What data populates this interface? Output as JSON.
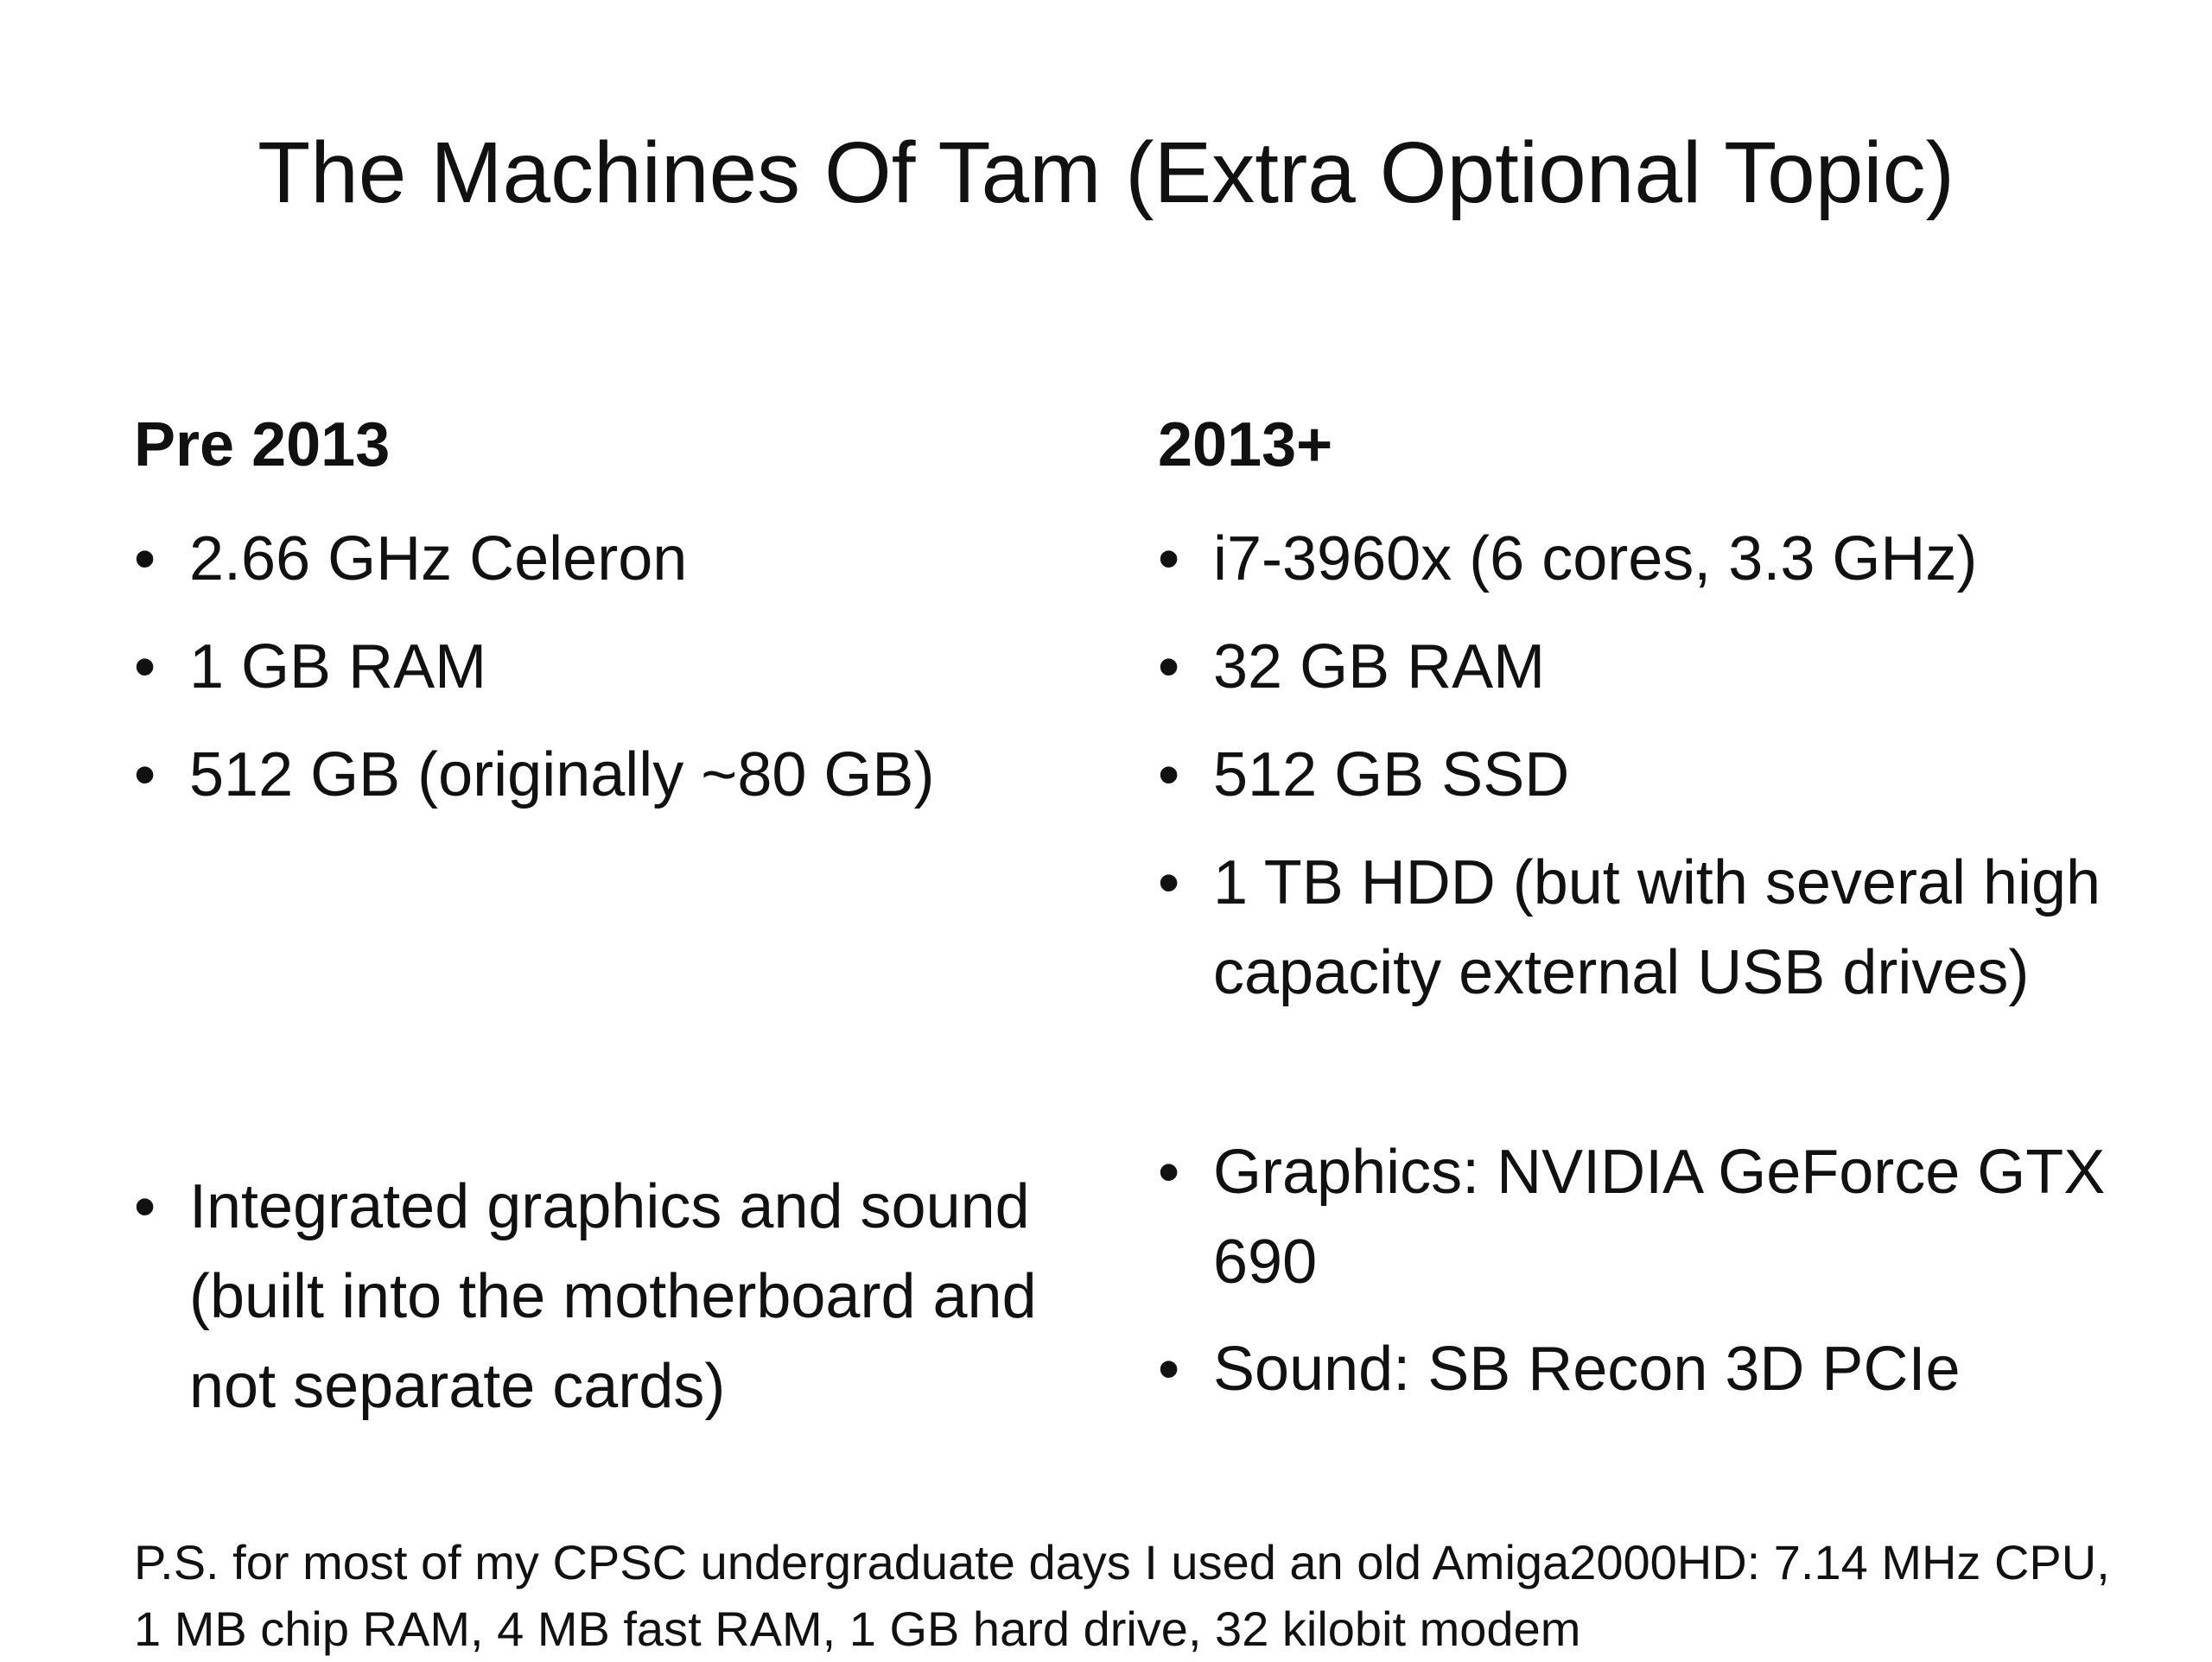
{
  "slide": {
    "title": "The Machines Of Tam (Extra Optional Topic)",
    "left_column": {
      "heading": "Pre 2013",
      "bullets": [
        "2.66 GHz Celeron",
        "1 GB RAM",
        "512 GB (originally ~80 GB)",
        "Integrated graphics  and sound (built into the motherboard and not separate cards)"
      ]
    },
    "right_column": {
      "heading": "2013+",
      "bullets": [
        "i7-3960x (6 cores, 3.3 GHz)",
        "32 GB RAM",
        "512 GB SSD",
        "1 TB HDD (but with several high capacity external USB drives)",
        "Graphics: NVIDIA GeForce GTX 690",
        "Sound: SB Recon 3D PCIe"
      ]
    },
    "footnote": "P.S. for most of my CPSC undergraduate days I used an old Amiga2000HD: 7.14 MHz CPU, 1 MB chip RAM, 4 MB fast RAM, 1 GB hard drive, 32 kilobit modem"
  }
}
